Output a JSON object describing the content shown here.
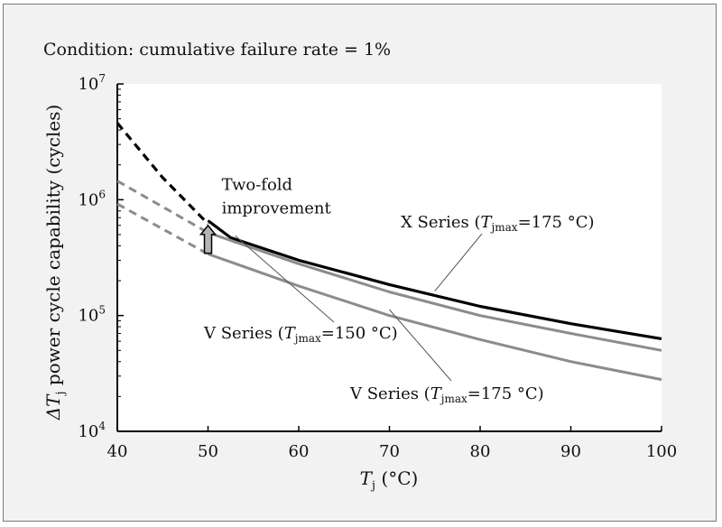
{
  "condition_text": "Condition:  cumulative failure rate = 1%",
  "colors": {
    "panel_bg": "#f2f2f2",
    "x_series": "#000000",
    "v_series": "#8c8c8c",
    "arrow_fill": "#b5b5b5"
  },
  "chart_data": {
    "type": "line",
    "x_scale": "linear",
    "y_scale": "log",
    "xlim": [
      40,
      100
    ],
    "ylim": [
      10000,
      10000000
    ],
    "x_ticks": [
      "40",
      "50",
      "60",
      "70",
      "80",
      "90",
      "100"
    ],
    "y_tick_values": [
      10000,
      100000,
      1000000,
      10000000
    ],
    "y_tick_labels": [
      {
        "base": "10",
        "exp": "4"
      },
      {
        "base": "10",
        "exp": "5"
      },
      {
        "base": "10",
        "exp": "6"
      },
      {
        "base": "10",
        "exp": "7"
      }
    ],
    "xlabel": {
      "main": "T",
      "sub": "j",
      "unit": " (°C)"
    },
    "ylabel": {
      "prefix": "ΔT",
      "sub": "j",
      "rest": " power cycle capability (cycles)"
    },
    "grid": false,
    "legend": "none",
    "series": [
      {
        "label": {
          "pre": "X Series (",
          "T": "T",
          "sub": "jmax",
          "post": "=175 °C)"
        },
        "solid": {
          "x": [
            50,
            52.5,
            60,
            70,
            80,
            90,
            100
          ],
          "y": [
            660000,
            470000,
            300000,
            185000,
            120000,
            85000,
            63000
          ]
        },
        "dashed": {
          "x": [
            40,
            45,
            50
          ],
          "y": [
            4600000,
            1550000,
            620000
          ]
        }
      },
      {
        "label": {
          "pre": "V Series (",
          "T": "T",
          "sub": "jmax",
          "post": "=150 °C)"
        },
        "solid": {
          "x": [
            50,
            60,
            70,
            80,
            90,
            100
          ],
          "y": [
            520000,
            280000,
            160000,
            100000,
            70000,
            50000
          ]
        },
        "dashed": {
          "x": [
            40,
            50
          ],
          "y": [
            1450000,
            520000
          ]
        }
      },
      {
        "label": {
          "pre": "V Series (",
          "T": "T",
          "sub": "jmax",
          "post": "=175 °C)"
        },
        "solid": {
          "x": [
            50,
            60,
            70,
            80,
            90,
            100
          ],
          "y": [
            340000,
            180000,
            100000,
            62000,
            40000,
            28000
          ]
        },
        "dashed": {
          "x": [
            40,
            50
          ],
          "y": [
            920000,
            340000
          ]
        }
      }
    ],
    "annotations": [
      {
        "text": "Two-fold",
        "x": 52,
        "y": 1350000
      },
      {
        "text": "improvement",
        "x": 52,
        "y": 850000
      }
    ]
  }
}
